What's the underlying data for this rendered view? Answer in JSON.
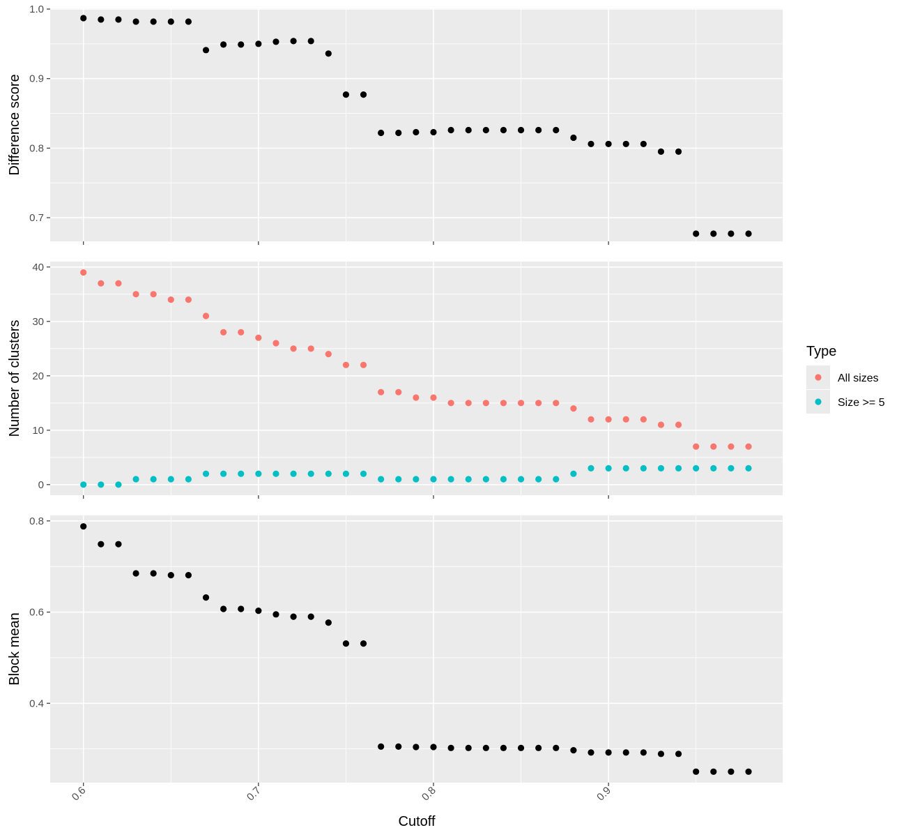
{
  "chart_data": {
    "type": "scatter",
    "xlabel": "Cutoff",
    "x_ticks": [
      "0.6",
      "0.7",
      "0.8",
      "0.9"
    ],
    "x_tick_values": [
      0.6,
      0.7,
      0.8,
      0.9
    ],
    "xlim": [
      0.581,
      0.1
    ],
    "x": [
      0.6,
      0.61,
      0.62,
      0.63,
      0.64,
      0.65,
      0.66,
      0.67,
      0.68,
      0.69,
      0.7,
      0.71,
      0.72,
      0.73,
      0.74,
      0.75,
      0.76,
      0.77,
      0.78,
      0.79,
      0.8,
      0.81,
      0.82,
      0.83,
      0.84,
      0.85,
      0.86,
      0.87,
      0.88,
      0.89,
      0.9,
      0.91,
      0.92,
      0.93,
      0.94,
      0.95,
      0.96,
      0.97,
      0.98
    ],
    "legend": {
      "title": "Type",
      "position": "right",
      "entries": [
        {
          "label": "All sizes",
          "color": "#F8766D"
        },
        {
          "label": "Size >= 5",
          "color": "#00BFC4"
        }
      ]
    },
    "panels": [
      {
        "id": "difference",
        "ylabel": "Difference score",
        "ylim": [
          0.666,
          1.001
        ],
        "y_ticks": [
          "0.7",
          "0.8",
          "0.9",
          "1.0"
        ],
        "y_tick_values": [
          0.7,
          0.8,
          0.9,
          1.0
        ],
        "series": [
          {
            "color": "#000000",
            "values": [
              0.987,
              0.985,
              0.985,
              0.982,
              0.982,
              0.982,
              0.982,
              0.941,
              0.949,
              0.949,
              0.95,
              0.953,
              0.954,
              0.954,
              0.936,
              0.877,
              0.877,
              0.822,
              0.822,
              0.823,
              0.823,
              0.826,
              0.826,
              0.826,
              0.826,
              0.826,
              0.826,
              0.826,
              0.815,
              0.806,
              0.806,
              0.806,
              0.806,
              0.795,
              0.795,
              0.677,
              0.677,
              0.677,
              0.677
            ]
          }
        ]
      },
      {
        "id": "clusters",
        "ylabel": "Number of clusters",
        "ylim": [
          -1.95,
          41.0
        ],
        "y_ticks": [
          "0",
          "10",
          "20",
          "30",
          "40"
        ],
        "y_tick_values": [
          0,
          10,
          20,
          30,
          40
        ],
        "series": [
          {
            "name": "All sizes",
            "color": "#F8766D",
            "values": [
              39,
              37,
              37,
              35,
              35,
              34,
              34,
              31,
              28,
              28,
              27,
              26,
              25,
              25,
              24,
              22,
              22,
              17,
              17,
              16,
              16,
              15,
              15,
              15,
              15,
              15,
              15,
              15,
              14,
              12,
              12,
              12,
              12,
              11,
              11,
              7,
              7,
              7,
              7
            ]
          },
          {
            "name": "Size >= 5",
            "color": "#00BFC4",
            "values": [
              0,
              0,
              0,
              1,
              1,
              1,
              1,
              2,
              2,
              2,
              2,
              2,
              2,
              2,
              2,
              2,
              2,
              1,
              1,
              1,
              1,
              1,
              1,
              1,
              1,
              1,
              1,
              1,
              2,
              3,
              3,
              3,
              3,
              3,
              3,
              3,
              3,
              3,
              3
            ]
          }
        ]
      },
      {
        "id": "block",
        "ylabel": "Block mean",
        "ylim": [
          0.226,
          0.812
        ],
        "y_ticks": [
          "0.4",
          "0.6",
          "0.8"
        ],
        "y_tick_values": [
          0.4,
          0.6,
          0.8
        ],
        "series": [
          {
            "color": "#000000",
            "values": [
              0.788,
              0.749,
              0.749,
              0.685,
              0.685,
              0.681,
              0.681,
              0.632,
              0.607,
              0.607,
              0.603,
              0.595,
              0.59,
              0.59,
              0.577,
              0.531,
              0.531,
              0.305,
              0.305,
              0.304,
              0.304,
              0.302,
              0.302,
              0.302,
              0.302,
              0.302,
              0.302,
              0.302,
              0.297,
              0.292,
              0.292,
              0.292,
              0.292,
              0.289,
              0.289,
              0.25,
              0.25,
              0.25,
              0.25
            ]
          }
        ]
      }
    ]
  }
}
